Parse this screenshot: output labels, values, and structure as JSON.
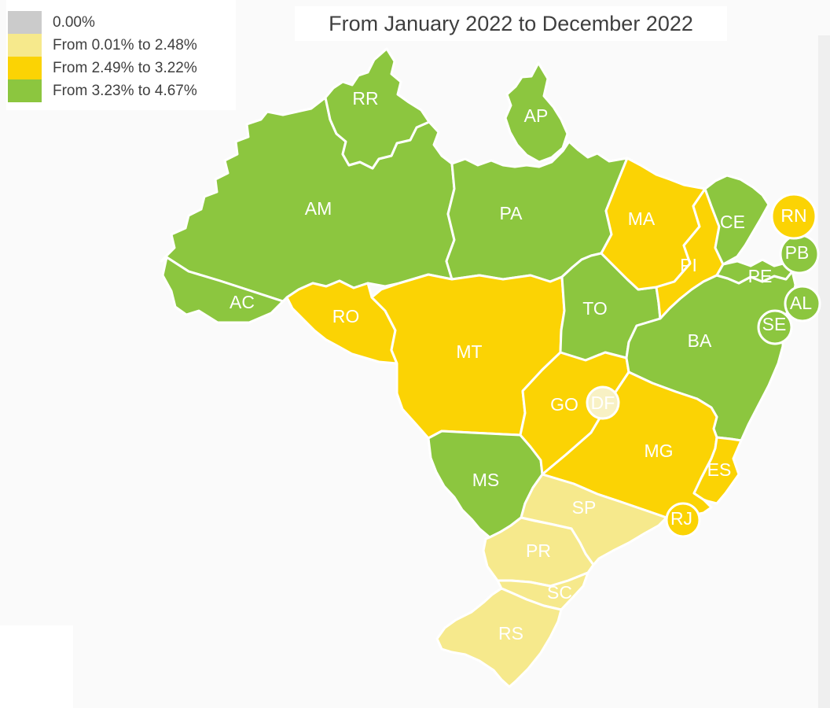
{
  "title": {
    "text": "From January 2022 to December 2022"
  },
  "legend": {
    "items": [
      {
        "label": "0.00%",
        "color": "#CBCBCB"
      },
      {
        "label": "From 0.01% to 2.48%",
        "color": "#F6E98C"
      },
      {
        "label": "From 2.49% to 3.22%",
        "color": "#FBD304"
      },
      {
        "label": "From 3.23% to 4.67%",
        "color": "#8CC63F"
      }
    ]
  },
  "map": {
    "border_color": "#FFFFFF",
    "label_color": "#FFFFFF",
    "states": [
      {
        "abbr": "AM",
        "category": 3
      },
      {
        "abbr": "PA",
        "category": 3
      },
      {
        "abbr": "AP",
        "category": 3
      },
      {
        "abbr": "RR",
        "category": 3
      },
      {
        "abbr": "AC",
        "category": 3
      },
      {
        "abbr": "RO",
        "category": 2
      },
      {
        "abbr": "MT",
        "category": 2
      },
      {
        "abbr": "TO",
        "category": 3
      },
      {
        "abbr": "MA",
        "category": 2
      },
      {
        "abbr": "PI",
        "category": 2
      },
      {
        "abbr": "CE",
        "category": 3
      },
      {
        "abbr": "MS",
        "category": 3
      },
      {
        "abbr": "GO",
        "category": 2
      },
      {
        "abbr": "BA",
        "category": 3
      },
      {
        "abbr": "PE",
        "category": 3
      },
      {
        "abbr": "MG",
        "category": 2
      },
      {
        "abbr": "ES",
        "category": 2
      },
      {
        "abbr": "SP",
        "category": 1
      },
      {
        "abbr": "PR",
        "category": 1
      },
      {
        "abbr": "SC",
        "category": 1
      },
      {
        "abbr": "RS",
        "category": 1
      },
      {
        "abbr": "SE",
        "category": 3
      },
      {
        "abbr": "AL",
        "category": 3
      },
      {
        "abbr": "PB",
        "category": 3
      },
      {
        "abbr": "RN",
        "category": 2
      },
      {
        "abbr": "RJ",
        "category": 2
      },
      {
        "abbr": "DF",
        "category": 1,
        "color_override": "#F8F1C4"
      }
    ]
  },
  "chart_data": {
    "type": "choropleth_map",
    "title": "From January 2022 to December 2022",
    "region": "Brazil states",
    "legend_position": "top-left",
    "classes": [
      {
        "label": "0.00%",
        "color": "#CBCBCB",
        "states": []
      },
      {
        "label": "From 0.01% to 2.48%",
        "color": "#F6E98C",
        "states": [
          "SP",
          "PR",
          "SC",
          "RS",
          "DF"
        ]
      },
      {
        "label": "From 2.49% to 3.22%",
        "color": "#FBD304",
        "states": [
          "RO",
          "MT",
          "MA",
          "PI",
          "RN",
          "GO",
          "MG",
          "ES",
          "RJ"
        ]
      },
      {
        "label": "From 3.23% to 4.67%",
        "color": "#8CC63F",
        "states": [
          "RR",
          "AP",
          "AM",
          "PA",
          "AC",
          "TO",
          "CE",
          "PB",
          "PE",
          "AL",
          "SE",
          "BA",
          "MS"
        ]
      }
    ]
  }
}
